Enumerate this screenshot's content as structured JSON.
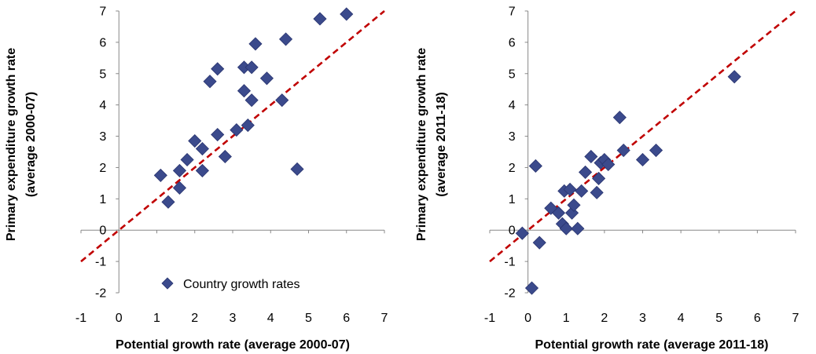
{
  "colors": {
    "marker": "#3b4a8c",
    "marker_edge": "#2a3570",
    "fit_line": "#c00000",
    "axis": "#888888"
  },
  "legend": {
    "label": "Country growth rates"
  },
  "chart_data": [
    {
      "type": "scatter",
      "xlabel": "Potential growth rate (average 2000-07)",
      "ylabel": [
        "Primary expenditure growth rate",
        "(average 2000-07)"
      ],
      "xlim": [
        -1,
        7
      ],
      "ylim": [
        -2,
        7
      ],
      "xticks": [
        -1,
        0,
        1,
        2,
        3,
        4,
        5,
        6,
        7
      ],
      "yticks": [
        -2,
        -1,
        0,
        1,
        2,
        3,
        4,
        5,
        6,
        7
      ],
      "legend_position": "bottom-left",
      "reference_line": {
        "style": "dashed",
        "x": [
          -1,
          7
        ],
        "y": [
          -1,
          7
        ]
      },
      "series": [
        {
          "name": "Country growth rates",
          "points": [
            [
              1.1,
              1.75
            ],
            [
              1.3,
              0.9
            ],
            [
              1.6,
              1.9
            ],
            [
              1.6,
              1.35
            ],
            [
              1.8,
              2.25
            ],
            [
              2.0,
              2.85
            ],
            [
              2.2,
              2.6
            ],
            [
              2.2,
              1.9
            ],
            [
              2.4,
              4.75
            ],
            [
              2.6,
              5.15
            ],
            [
              2.6,
              3.05
            ],
            [
              2.8,
              2.35
            ],
            [
              3.1,
              3.2
            ],
            [
              3.3,
              5.2
            ],
            [
              3.3,
              4.45
            ],
            [
              3.4,
              3.35
            ],
            [
              3.5,
              5.2
            ],
            [
              3.5,
              4.15
            ],
            [
              3.6,
              5.95
            ],
            [
              3.9,
              4.85
            ],
            [
              4.3,
              4.15
            ],
            [
              4.4,
              6.1
            ],
            [
              4.7,
              1.95
            ],
            [
              5.3,
              6.75
            ],
            [
              6.0,
              6.9
            ]
          ]
        }
      ]
    },
    {
      "type": "scatter",
      "xlabel": "Potential growth rate (average 2011-18)",
      "ylabel": [
        "Primary expenditure growth rate",
        "(average 2011-18)"
      ],
      "xlim": [
        -1,
        7
      ],
      "ylim": [
        -2,
        7
      ],
      "xticks": [
        -1,
        0,
        1,
        2,
        3,
        4,
        5,
        6,
        7
      ],
      "yticks": [
        -2,
        -1,
        0,
        1,
        2,
        3,
        4,
        5,
        6,
        7
      ],
      "reference_line": {
        "style": "dashed",
        "x": [
          -1,
          7
        ],
        "y": [
          -1,
          7
        ]
      },
      "series": [
        {
          "points": [
            [
              -0.15,
              -0.1
            ],
            [
              0.1,
              -1.85
            ],
            [
              0.2,
              2.05
            ],
            [
              0.3,
              -0.4
            ],
            [
              0.6,
              0.7
            ],
            [
              0.8,
              0.55
            ],
            [
              0.9,
              0.2
            ],
            [
              0.95,
              1.25
            ],
            [
              1.0,
              0.05
            ],
            [
              1.1,
              1.3
            ],
            [
              1.15,
              0.55
            ],
            [
              1.2,
              0.8
            ],
            [
              1.3,
              0.05
            ],
            [
              1.4,
              1.25
            ],
            [
              1.5,
              1.85
            ],
            [
              1.65,
              2.35
            ],
            [
              1.8,
              1.2
            ],
            [
              1.85,
              1.65
            ],
            [
              1.9,
              2.15
            ],
            [
              2.0,
              2.25
            ],
            [
              2.1,
              2.1
            ],
            [
              2.4,
              3.6
            ],
            [
              2.5,
              2.55
            ],
            [
              3.0,
              2.25
            ],
            [
              3.35,
              2.55
            ],
            [
              5.4,
              4.9
            ]
          ]
        }
      ]
    }
  ]
}
